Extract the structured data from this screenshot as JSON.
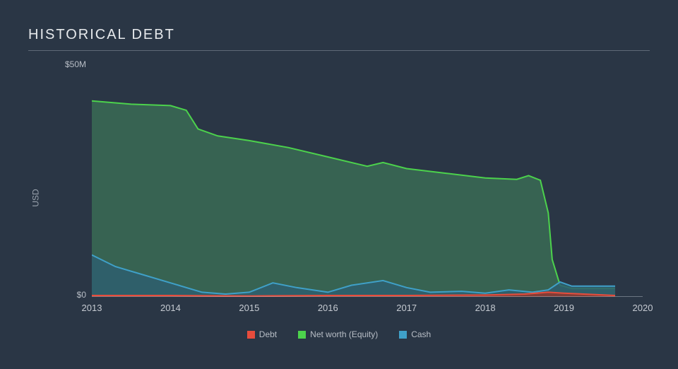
{
  "title": "HISTORICAL DEBT",
  "ylabel": "USD",
  "background_color": "#2a3645",
  "chart": {
    "type": "area",
    "xlim": [
      2013,
      2020
    ],
    "ylim": [
      0,
      50
    ],
    "yticks": [
      {
        "value": 0,
        "label": "$0"
      },
      {
        "value": 50,
        "label": "$50M"
      }
    ],
    "xticks": [
      {
        "value": 2013,
        "label": "2013"
      },
      {
        "value": 2014,
        "label": "2014"
      },
      {
        "value": 2015,
        "label": "2015"
      },
      {
        "value": 2016,
        "label": "2016"
      },
      {
        "value": 2017,
        "label": "2017"
      },
      {
        "value": 2018,
        "label": "2018"
      },
      {
        "value": 2019,
        "label": "2019"
      },
      {
        "value": 2020,
        "label": "2020"
      }
    ],
    "axis_color": "#aeb5bf",
    "series": [
      {
        "name": "Net worth (Equity)",
        "stroke": "#4cd24c",
        "fill": "#3a6b55",
        "fill_opacity": 0.85,
        "stroke_width": 2,
        "data": [
          {
            "x": 2013.0,
            "y": 42.0
          },
          {
            "x": 2013.5,
            "y": 41.3
          },
          {
            "x": 2014.0,
            "y": 41.0
          },
          {
            "x": 2014.2,
            "y": 40.0
          },
          {
            "x": 2014.35,
            "y": 36.0
          },
          {
            "x": 2014.6,
            "y": 34.5
          },
          {
            "x": 2015.0,
            "y": 33.5
          },
          {
            "x": 2015.5,
            "y": 32.0
          },
          {
            "x": 2016.0,
            "y": 30.0
          },
          {
            "x": 2016.5,
            "y": 28.0
          },
          {
            "x": 2016.7,
            "y": 28.8
          },
          {
            "x": 2017.0,
            "y": 27.5
          },
          {
            "x": 2017.5,
            "y": 26.5
          },
          {
            "x": 2018.0,
            "y": 25.5
          },
          {
            "x": 2018.4,
            "y": 25.2
          },
          {
            "x": 2018.55,
            "y": 26.0
          },
          {
            "x": 2018.7,
            "y": 25.0
          },
          {
            "x": 2018.8,
            "y": 18.0
          },
          {
            "x": 2018.85,
            "y": 8.0
          },
          {
            "x": 2018.95,
            "y": 2.5
          },
          {
            "x": 2019.1,
            "y": 1.8
          },
          {
            "x": 2019.65,
            "y": 1.8
          }
        ]
      },
      {
        "name": "Cash",
        "stroke": "#3fa0c8",
        "fill": "#2e5e6e",
        "fill_opacity": 0.85,
        "stroke_width": 2,
        "data": [
          {
            "x": 2013.0,
            "y": 9.0
          },
          {
            "x": 2013.3,
            "y": 6.5
          },
          {
            "x": 2013.6,
            "y": 5.0
          },
          {
            "x": 2014.0,
            "y": 3.0
          },
          {
            "x": 2014.4,
            "y": 1.0
          },
          {
            "x": 2014.7,
            "y": 0.6
          },
          {
            "x": 2015.0,
            "y": 1.0
          },
          {
            "x": 2015.3,
            "y": 3.0
          },
          {
            "x": 2015.6,
            "y": 2.0
          },
          {
            "x": 2016.0,
            "y": 1.0
          },
          {
            "x": 2016.3,
            "y": 2.5
          },
          {
            "x": 2016.7,
            "y": 3.5
          },
          {
            "x": 2017.0,
            "y": 2.0
          },
          {
            "x": 2017.3,
            "y": 1.0
          },
          {
            "x": 2017.7,
            "y": 1.2
          },
          {
            "x": 2018.0,
            "y": 0.8
          },
          {
            "x": 2018.3,
            "y": 1.5
          },
          {
            "x": 2018.6,
            "y": 1.0
          },
          {
            "x": 2018.8,
            "y": 1.5
          },
          {
            "x": 2018.95,
            "y": 3.2
          },
          {
            "x": 2019.1,
            "y": 2.3
          },
          {
            "x": 2019.65,
            "y": 2.3
          }
        ]
      },
      {
        "name": "Debt",
        "stroke": "#e74c3c",
        "fill": "#8b3a32",
        "fill_opacity": 0.9,
        "stroke_width": 2,
        "data": [
          {
            "x": 2013.0,
            "y": 0.3
          },
          {
            "x": 2014.0,
            "y": 0.3
          },
          {
            "x": 2015.0,
            "y": 0.2
          },
          {
            "x": 2016.0,
            "y": 0.3
          },
          {
            "x": 2017.0,
            "y": 0.3
          },
          {
            "x": 2018.0,
            "y": 0.4
          },
          {
            "x": 2018.5,
            "y": 0.6
          },
          {
            "x": 2018.8,
            "y": 1.0
          },
          {
            "x": 2019.0,
            "y": 0.8
          },
          {
            "x": 2019.65,
            "y": 0.3
          }
        ]
      }
    ],
    "legend": [
      {
        "label": "Debt",
        "color": "#e74c3c"
      },
      {
        "label": "Net worth (Equity)",
        "color": "#4cd24c"
      },
      {
        "label": "Cash",
        "color": "#3fa0c8"
      }
    ]
  }
}
